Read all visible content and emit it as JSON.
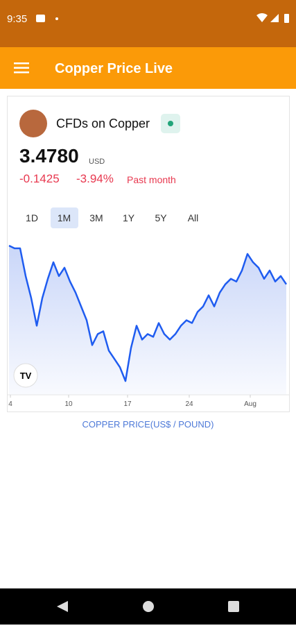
{
  "status_bar": {
    "time": "9:35"
  },
  "app_bar": {
    "title": "Copper Price Live"
  },
  "card": {
    "name": "CFDs on Copper",
    "price": "3.4780",
    "currency": "USD",
    "change": "-0.1425",
    "change_pct": "-3.94%",
    "period": "Past month",
    "ranges": [
      "1D",
      "1M",
      "3M",
      "1Y",
      "5Y",
      "All"
    ],
    "selected_range": 1
  },
  "chart_data": {
    "type": "line",
    "color": "#1f5cf0",
    "x": [
      0,
      2,
      4,
      6,
      8,
      10,
      12,
      14,
      16,
      18,
      20,
      22,
      24,
      26,
      28,
      30,
      32,
      34,
      36,
      38,
      40,
      42,
      44,
      46,
      48,
      50,
      52,
      54,
      56,
      58,
      60,
      62,
      64,
      66,
      68,
      70,
      72,
      74,
      76,
      78,
      80,
      82,
      84,
      86,
      88,
      90,
      92,
      94,
      96,
      98,
      100
    ],
    "values": [
      3.62,
      3.61,
      3.61,
      3.51,
      3.43,
      3.33,
      3.43,
      3.5,
      3.56,
      3.51,
      3.54,
      3.49,
      3.45,
      3.4,
      3.35,
      3.26,
      3.3,
      3.31,
      3.24,
      3.21,
      3.18,
      3.13,
      3.25,
      3.33,
      3.28,
      3.3,
      3.29,
      3.34,
      3.3,
      3.28,
      3.3,
      3.33,
      3.35,
      3.34,
      3.38,
      3.4,
      3.44,
      3.4,
      3.45,
      3.48,
      3.5,
      3.49,
      3.53,
      3.59,
      3.56,
      3.54,
      3.5,
      3.53,
      3.49,
      3.51,
      3.48
    ],
    "xlim": [
      0,
      100
    ],
    "ylim": [
      3.08,
      3.64
    ],
    "xticks": [
      {
        "value": 0.5,
        "label": "4"
      },
      {
        "value": 21.5,
        "label": "10"
      },
      {
        "value": 42.75,
        "label": "17"
      },
      {
        "value": 65,
        "label": "24"
      },
      {
        "value": 87,
        "label": "Aug"
      }
    ]
  },
  "caption": "COPPER PRICE(US$ / POUND)"
}
